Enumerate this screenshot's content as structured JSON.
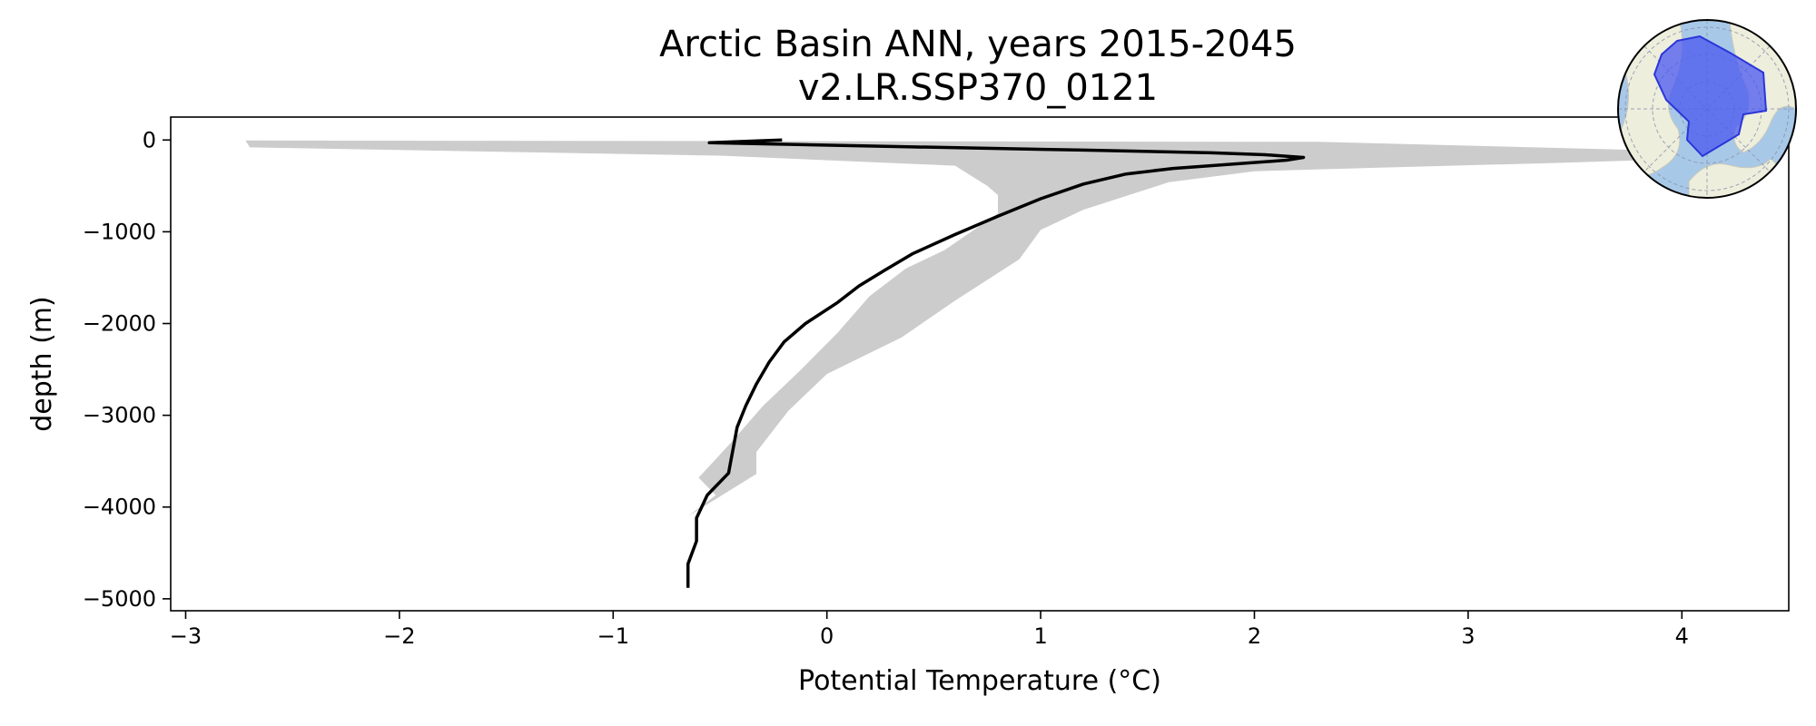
{
  "chart_data": {
    "type": "line",
    "title": "Arctic Basin ANN, years 2015-2045",
    "subtitle": "v2.LR.SSP370_0121",
    "xlabel": "Potential Temperature (°C)",
    "ylabel": "depth (m)",
    "xlim": [
      -3.07,
      4.5
    ],
    "ylim": [
      -5130,
      250
    ],
    "xticks": [
      -3,
      -2,
      -1,
      0,
      1,
      2,
      3,
      4
    ],
    "xtick_labels": [
      "−3",
      "−2",
      "−1",
      "0",
      "1",
      "2",
      "3",
      "4"
    ],
    "yticks": [
      0,
      -1000,
      -2000,
      -3000,
      -4000,
      -5000
    ],
    "ytick_labels": [
      "0",
      "−1000",
      "−2000",
      "−3000",
      "−4000",
      "−5000"
    ],
    "grid": false,
    "legend": "none",
    "colors": {
      "line": "#000000",
      "band": "#cccccc",
      "inset_ocean": "#a8c8e8",
      "inset_land": "#eeeedd",
      "inset_region": "#4a58f0"
    },
    "series": [
      {
        "role": "mean-profile",
        "x": [
          -0.21,
          -0.55,
          0.3,
          1.2,
          1.8,
          2.05,
          2.23,
          2.15,
          1.62,
          1.4,
          1.2,
          1.0,
          0.8,
          0.6,
          0.4,
          0.27,
          0.15,
          0.05,
          -0.1,
          -0.2,
          -0.27,
          -0.33,
          -0.38,
          -0.42,
          -0.46,
          -0.56,
          -0.61,
          -0.61,
          -0.65,
          -0.65
        ],
        "y": [
          0,
          -30,
          -70,
          -110,
          -140,
          -160,
          -190,
          -220,
          -310,
          -370,
          -480,
          -640,
          -830,
          -1030,
          -1240,
          -1420,
          -1590,
          -1770,
          -2000,
          -2200,
          -2420,
          -2660,
          -2900,
          -3130,
          -3630,
          -3870,
          -4120,
          -4370,
          -4620,
          -4880
        ]
      }
    ],
    "band": {
      "role": "range",
      "upper": {
        "x": [
          2.3,
          4.15,
          4.1,
          3.4,
          2.6,
          2.0,
          1.6,
          1.2,
          1.0,
          0.9,
          0.6,
          0.35,
          0.0,
          -0.18,
          -0.33,
          -0.33
        ],
        "y": [
          -20,
          -130,
          -200,
          -250,
          -300,
          -340,
          -460,
          -760,
          -980,
          -1300,
          -1750,
          -2150,
          -2550,
          -2950,
          -3400,
          -3640
        ]
      },
      "lower": {
        "x": [
          -0.65,
          -0.52,
          -0.6,
          -0.45,
          -0.3,
          -0.12,
          0.05,
          0.2,
          0.37,
          0.55,
          0.8,
          0.8,
          0.75,
          0.6,
          -0.5,
          -2.7,
          -2.72,
          2.3
        ],
        "y": [
          -4100,
          -3870,
          -3680,
          -3300,
          -2900,
          -2500,
          -2100,
          -1700,
          -1400,
          -1200,
          -800,
          -600,
          -500,
          -280,
          -170,
          -80,
          -5,
          -20
        ]
      }
    }
  }
}
